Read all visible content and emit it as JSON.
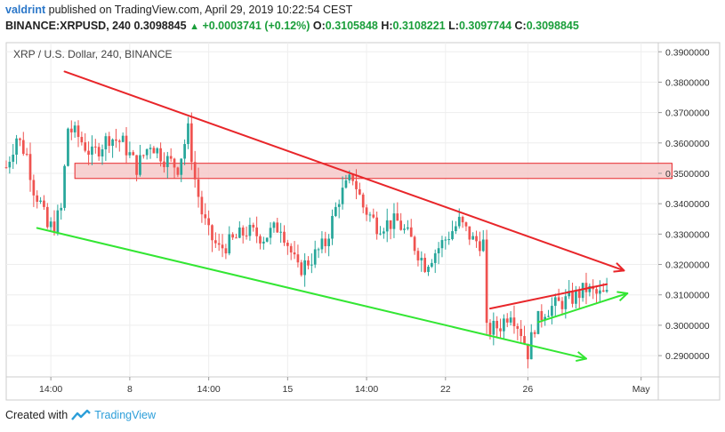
{
  "header": {
    "user": "valdrint",
    "published_text": "published on TradingView.com, April 29, 2019 10:22:54 CEST",
    "symbol": "BINANCE:XRPUSD, 240",
    "last": "0.3098845",
    "change": "+0.0003741 (+0.12%)",
    "o_label": "O:",
    "o_value": "0.3105848",
    "h_label": "H:",
    "h_value": "0.3108221",
    "l_label": "L:",
    "l_value": "0.3097744",
    "c_label": "C:",
    "c_value": "0.3098845"
  },
  "footer": {
    "created_with": "Created with",
    "brand": "TradingView"
  },
  "colors": {
    "up": "#26a69a",
    "down": "#ef5350",
    "resistance": "#e8262a",
    "support": "#33e633",
    "zone_fill": "#f6c9c9",
    "zone_stroke": "#e8262a",
    "grid": "#eeeeee",
    "axis_text": "#333333"
  },
  "chart_data": {
    "type": "candlestick",
    "title": "XRP / U.S. Dollar, 240, BINANCE",
    "ylim": [
      0.283,
      0.393
    ],
    "xlim": [
      0,
      190
    ],
    "y_ticks": [
      "0.2900000",
      "0.3000000",
      "0.3100000",
      "0.3200000",
      "0.3300000",
      "0.3400000",
      "0.3500000",
      "0.3600000",
      "0.3700000",
      "0.3800000",
      "0.3900000"
    ],
    "x_ticks": [
      {
        "label": "14:00",
        "x": 13
      },
      {
        "label": "8",
        "x": 36
      },
      {
        "label": "14:00",
        "x": 59
      },
      {
        "label": "15",
        "x": 82
      },
      {
        "label": "14:00",
        "x": 105
      },
      {
        "label": "22",
        "x": 128
      },
      {
        "label": "26",
        "x": 152
      },
      {
        "label": "May",
        "x": 185
      }
    ],
    "resistance_zone": {
      "y_low": 0.3483,
      "y_high": 0.3533,
      "x_start": 20,
      "x_end": 194
    },
    "trendlines": [
      {
        "name": "descending-resistance",
        "color": "resistance",
        "arrow": true,
        "points": [
          [
            17,
            0.3835
          ],
          [
            180,
            0.318
          ]
        ]
      },
      {
        "name": "descending-support",
        "color": "support",
        "arrow": true,
        "points": [
          [
            9,
            0.332
          ],
          [
            169,
            0.289
          ]
        ]
      },
      {
        "name": "pennant-upper",
        "color": "resistance",
        "arrow": false,
        "points": [
          [
            141,
            0.3055
          ],
          [
            175,
            0.3135
          ]
        ]
      },
      {
        "name": "pennant-lower",
        "color": "support",
        "arrow": true,
        "points": [
          [
            155,
            0.301
          ],
          [
            181,
            0.3105
          ]
        ]
      }
    ],
    "key_points": [
      [
        0,
        0.352
      ],
      [
        3,
        0.362
      ],
      [
        6,
        0.356
      ],
      [
        8,
        0.345
      ],
      [
        10,
        0.34
      ],
      [
        12,
        0.332
      ],
      [
        14,
        0.333
      ],
      [
        16,
        0.338
      ],
      [
        18,
        0.365
      ],
      [
        21,
        0.362
      ],
      [
        25,
        0.356
      ],
      [
        30,
        0.362
      ],
      [
        34,
        0.36
      ],
      [
        38,
        0.352
      ],
      [
        42,
        0.36
      ],
      [
        46,
        0.355
      ],
      [
        50,
        0.352
      ],
      [
        53,
        0.364
      ],
      [
        55,
        0.348
      ],
      [
        57,
        0.337
      ],
      [
        59,
        0.33
      ],
      [
        62,
        0.325
      ],
      [
        65,
        0.327
      ],
      [
        70,
        0.331
      ],
      [
        75,
        0.329
      ],
      [
        80,
        0.333
      ],
      [
        85,
        0.318
      ],
      [
        89,
        0.322
      ],
      [
        93,
        0.327
      ],
      [
        97,
        0.342
      ],
      [
        101,
        0.349
      ],
      [
        104,
        0.339
      ],
      [
        108,
        0.333
      ],
      [
        114,
        0.334
      ],
      [
        118,
        0.328
      ],
      [
        122,
        0.32
      ],
      [
        127,
        0.327
      ],
      [
        132,
        0.334
      ],
      [
        136,
        0.328
      ],
      [
        139,
        0.327
      ],
      [
        140,
        0.298
      ],
      [
        144,
        0.3
      ],
      [
        147,
        0.305
      ],
      [
        150,
        0.298
      ],
      [
        152,
        0.291
      ],
      [
        154,
        0.3
      ],
      [
        157,
        0.305
      ],
      [
        161,
        0.307
      ],
      [
        165,
        0.309
      ],
      [
        169,
        0.312
      ],
      [
        172,
        0.31
      ],
      [
        175,
        0.3099
      ]
    ]
  }
}
